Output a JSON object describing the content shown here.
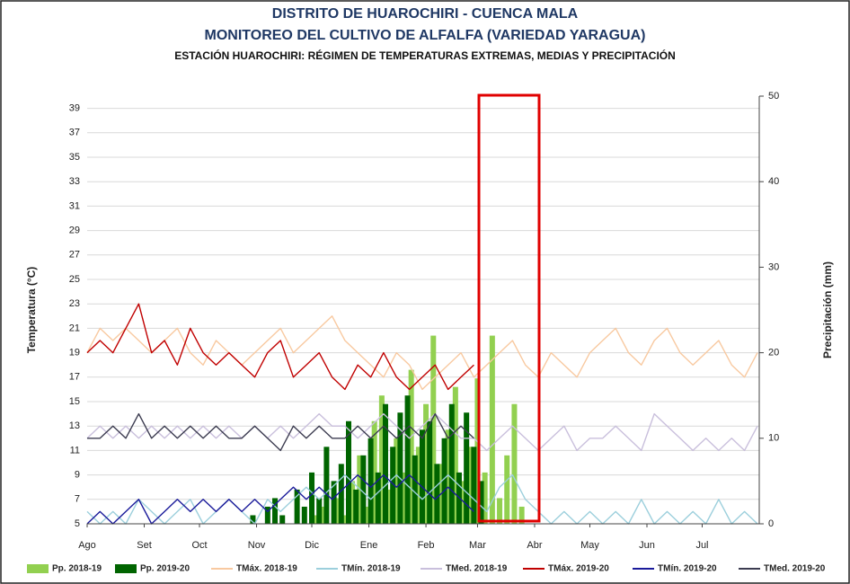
{
  "chart_data": {
    "type": "line",
    "title": "DISTRITO DE HUAROCHIRI - CUENCA MALA",
    "subtitle": "MONITOREO DEL CULTIVO DE ALFALFA  (VARIEDAD YARAGUA)",
    "subtitle2": "ESTACIÓN HUAROCHIRI:  RÉGIMEN DE TEMPERATURAS EXTREMAS, MEDIAS Y PRECIPITACIÓN",
    "ylabel": "Temperatura (°C)",
    "y2label": "Precipitación (mm)",
    "xlim": [
      0,
      365
    ],
    "xticks": [
      {
        "value": 0,
        "label": "Ago"
      },
      {
        "value": 31,
        "label": "Set"
      },
      {
        "value": 61,
        "label": "Oct"
      },
      {
        "value": 92,
        "label": "Nov"
      },
      {
        "value": 122,
        "label": "Dic"
      },
      {
        "value": 153,
        "label": "Ene"
      },
      {
        "value": 184,
        "label": "Feb"
      },
      {
        "value": 212,
        "label": "Mar"
      },
      {
        "value": 243,
        "label": "Abr"
      },
      {
        "value": 273,
        "label": "May"
      },
      {
        "value": 304,
        "label": "Jun"
      },
      {
        "value": 334,
        "label": "Jul"
      }
    ],
    "ylim": [
      5,
      40
    ],
    "yticks": [
      5,
      7,
      9,
      11,
      13,
      15,
      17,
      19,
      21,
      23,
      25,
      27,
      29,
      31,
      33,
      35,
      37,
      39
    ],
    "y2lim": [
      0,
      50
    ],
    "y2ticks": [
      0,
      10,
      20,
      30,
      40,
      50
    ],
    "grid": true,
    "series": [
      {
        "name": "Pp. 2018-19",
        "type": "bar",
        "axis": "y2",
        "color": "#92d050",
        "x": [
          120,
          124,
          128,
          132,
          136,
          140,
          144,
          148,
          152,
          156,
          160,
          164,
          168,
          172,
          176,
          180,
          184,
          188,
          192,
          196,
          200,
          204,
          208,
          212,
          216,
          220,
          224,
          228,
          232,
          236,
          240
        ],
        "values": [
          0,
          1,
          2,
          0,
          3,
          1,
          5,
          8,
          2,
          12,
          15,
          4,
          10,
          6,
          18,
          9,
          14,
          22,
          7,
          11,
          16,
          5,
          9,
          17,
          6,
          22,
          3,
          8,
          14,
          2,
          0
        ]
      },
      {
        "name": "Pp. 2019-20",
        "type": "bar",
        "axis": "y2",
        "color": "#006400",
        "x": [
          90,
          94,
          98,
          102,
          106,
          110,
          114,
          118,
          122,
          126,
          130,
          134,
          138,
          142,
          146,
          150,
          154,
          158,
          162,
          166,
          170,
          174,
          178,
          182,
          186,
          190,
          194,
          198,
          202,
          206,
          210,
          214
        ],
        "values": [
          1,
          0,
          2,
          3,
          1,
          0,
          4,
          2,
          6,
          3,
          9,
          5,
          7,
          12,
          4,
          8,
          10,
          6,
          14,
          9,
          13,
          15,
          8,
          11,
          12,
          7,
          10,
          14,
          6,
          13,
          9,
          5
        ]
      },
      {
        "name": "TMáx. 2018-19",
        "type": "line",
        "color": "#f8c9a0",
        "x": [
          0,
          7,
          14,
          21,
          28,
          35,
          42,
          49,
          56,
          63,
          70,
          77,
          84,
          91,
          98,
          105,
          112,
          119,
          126,
          133,
          140,
          147,
          154,
          161,
          168,
          175,
          182,
          189,
          196,
          203,
          210,
          217,
          224,
          231,
          238,
          245,
          252,
          259,
          266,
          273,
          280,
          287,
          294,
          301,
          308,
          315,
          322,
          329,
          336,
          343,
          350,
          357,
          364
        ],
        "values": [
          19,
          21,
          20,
          21,
          20,
          19,
          20,
          21,
          19,
          18,
          20,
          19,
          18,
          19,
          20,
          21,
          19,
          20,
          21,
          22,
          20,
          19,
          18,
          17,
          19,
          18,
          16,
          17,
          18,
          19,
          17,
          18,
          19,
          20,
          18,
          17,
          19,
          18,
          17,
          19,
          20,
          21,
          19,
          18,
          20,
          21,
          19,
          18,
          19,
          20,
          18,
          17,
          19
        ]
      },
      {
        "name": "TMín. 2018-19",
        "type": "line",
        "color": "#9ccfdc",
        "x": [
          0,
          7,
          14,
          21,
          28,
          35,
          42,
          49,
          56,
          63,
          70,
          77,
          84,
          91,
          98,
          105,
          112,
          119,
          126,
          133,
          140,
          147,
          154,
          161,
          168,
          175,
          182,
          189,
          196,
          203,
          210,
          217,
          224,
          231,
          238,
          245,
          252,
          259,
          266,
          273,
          280,
          287,
          294,
          301,
          308,
          315,
          322,
          329,
          336,
          343,
          350,
          357,
          364
        ],
        "values": [
          6,
          5,
          6,
          5,
          7,
          6,
          5,
          6,
          7,
          5,
          6,
          7,
          6,
          5,
          7,
          6,
          7,
          8,
          7,
          8,
          9,
          8,
          7,
          8,
          9,
          8,
          7,
          8,
          9,
          8,
          7,
          6,
          8,
          9,
          7,
          6,
          5,
          6,
          5,
          6,
          5,
          6,
          5,
          7,
          5,
          6,
          5,
          6,
          5,
          7,
          5,
          6,
          5
        ]
      },
      {
        "name": "TMed. 2018-19",
        "type": "line",
        "color": "#c9bfdc",
        "x": [
          0,
          7,
          14,
          21,
          28,
          35,
          42,
          49,
          56,
          63,
          70,
          77,
          84,
          91,
          98,
          105,
          112,
          119,
          126,
          133,
          140,
          147,
          154,
          161,
          168,
          175,
          182,
          189,
          196,
          203,
          210,
          217,
          224,
          231,
          238,
          245,
          252,
          259,
          266,
          273,
          280,
          287,
          294,
          301,
          308,
          315,
          322,
          329,
          336,
          343,
          350,
          357,
          364
        ],
        "values": [
          12,
          13,
          12,
          13,
          12,
          13,
          12,
          13,
          12,
          13,
          12,
          13,
          12,
          13,
          12,
          13,
          12,
          13,
          14,
          13,
          13,
          12,
          13,
          14,
          13,
          12,
          13,
          14,
          13,
          12,
          12,
          11,
          12,
          13,
          12,
          11,
          12,
          13,
          11,
          12,
          12,
          13,
          12,
          11,
          14,
          13,
          12,
          11,
          12,
          11,
          12,
          11,
          13
        ]
      },
      {
        "name": "TMáx. 2019-20",
        "type": "line",
        "color": "#c00000",
        "x": [
          0,
          7,
          14,
          21,
          28,
          35,
          42,
          49,
          56,
          63,
          70,
          77,
          84,
          91,
          98,
          105,
          112,
          119,
          126,
          133,
          140,
          147,
          154,
          161,
          168,
          175,
          182,
          189,
          196,
          203,
          210
        ],
        "values": [
          19,
          20,
          19,
          21,
          23,
          19,
          20,
          18,
          21,
          19,
          18,
          19,
          18,
          17,
          19,
          20,
          17,
          18,
          19,
          17,
          16,
          18,
          17,
          19,
          17,
          16,
          17,
          18,
          16,
          17,
          18
        ]
      },
      {
        "name": "TMín. 2019-20",
        "type": "line",
        "color": "#1a1a9a",
        "x": [
          0,
          7,
          14,
          21,
          28,
          35,
          42,
          49,
          56,
          63,
          70,
          77,
          84,
          91,
          98,
          105,
          112,
          119,
          126,
          133,
          140,
          147,
          154,
          161,
          168,
          175,
          182,
          189,
          196,
          203,
          210
        ],
        "values": [
          5,
          6,
          5,
          6,
          7,
          5,
          6,
          7,
          6,
          7,
          6,
          7,
          6,
          7,
          6,
          7,
          8,
          7,
          8,
          7,
          8,
          9,
          8,
          9,
          8,
          9,
          8,
          7,
          8,
          7,
          6
        ]
      },
      {
        "name": "TMed. 2019-20",
        "type": "line",
        "color": "#3c3c50",
        "x": [
          0,
          7,
          14,
          21,
          28,
          35,
          42,
          49,
          56,
          63,
          70,
          77,
          84,
          91,
          98,
          105,
          112,
          119,
          126,
          133,
          140,
          147,
          154,
          161,
          168,
          175,
          182,
          189,
          196,
          203,
          210
        ],
        "values": [
          12,
          12,
          13,
          12,
          14,
          12,
          13,
          12,
          13,
          12,
          13,
          12,
          12,
          13,
          12,
          11,
          13,
          12,
          13,
          12,
          12,
          13,
          12,
          13,
          12,
          13,
          12,
          14,
          12,
          13,
          12
        ]
      }
    ]
  }
}
